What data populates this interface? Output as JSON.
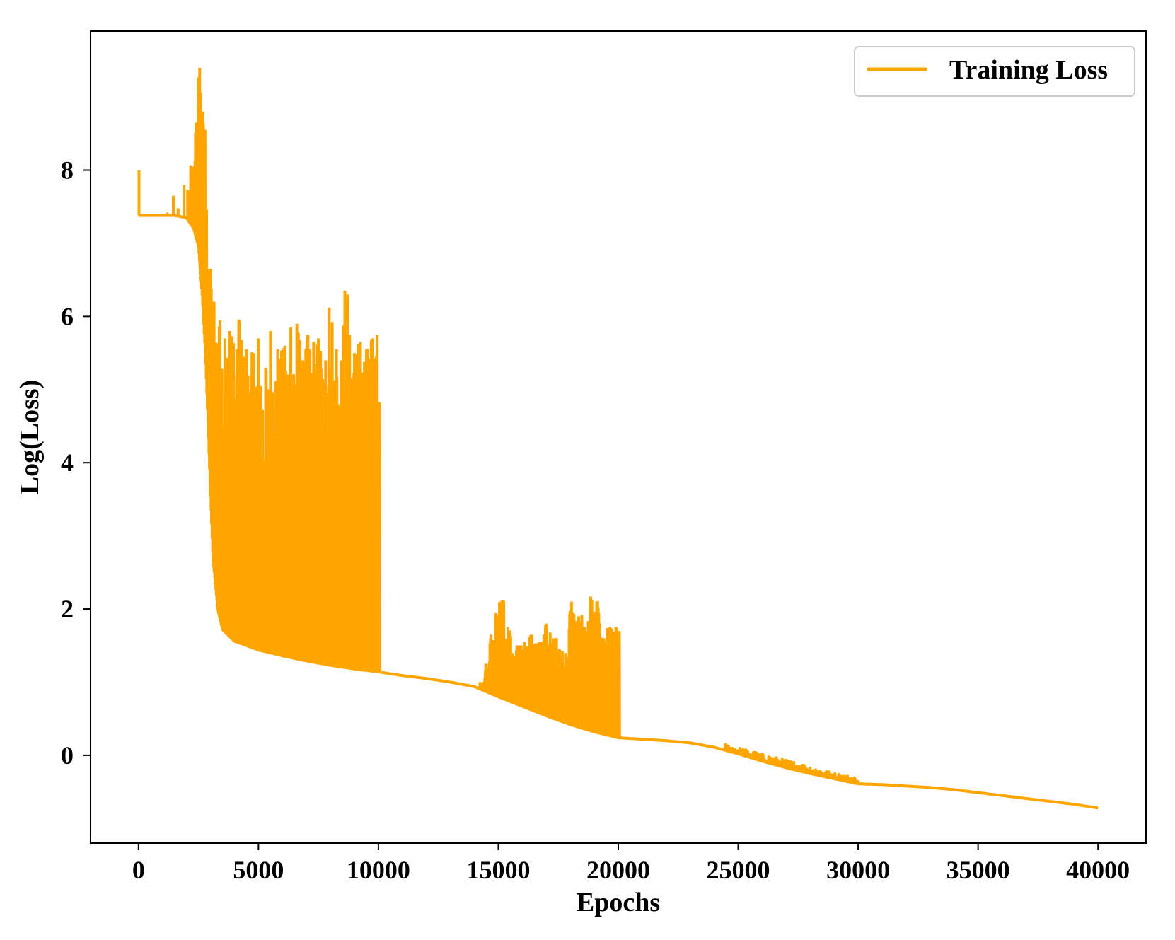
{
  "chart_data": {
    "type": "line",
    "title": "",
    "xlabel": "Epochs",
    "ylabel": "Log(Loss)",
    "xlim": [
      -2000,
      42000
    ],
    "ylim": [
      -1.2,
      9.9
    ],
    "x_ticks": [
      0,
      5000,
      10000,
      15000,
      20000,
      25000,
      30000,
      35000,
      40000
    ],
    "x_tick_labels": [
      "0",
      "5000",
      "10000",
      "15000",
      "20000",
      "25000",
      "30000",
      "35000",
      "40000"
    ],
    "y_ticks": [
      0,
      2,
      4,
      6,
      8
    ],
    "y_tick_labels": [
      "0",
      "2",
      "4",
      "6",
      "8"
    ],
    "grid": false,
    "legend": {
      "position": "top-right",
      "entries": [
        "Training Loss"
      ]
    },
    "series": [
      {
        "name": "Training Loss",
        "color": "#FFA500",
        "baseline": [
          [
            0,
            7.38
          ],
          [
            1000,
            7.38
          ],
          [
            1500,
            7.38
          ],
          [
            2000,
            7.35
          ],
          [
            2300,
            7.2
          ],
          [
            2500,
            6.95
          ],
          [
            2650,
            6.3
          ],
          [
            2800,
            5.4
          ],
          [
            2950,
            4.0
          ],
          [
            3100,
            2.7
          ],
          [
            3300,
            2.0
          ],
          [
            3500,
            1.72
          ],
          [
            4000,
            1.56
          ],
          [
            5000,
            1.44
          ],
          [
            6000,
            1.36
          ],
          [
            7000,
            1.29
          ],
          [
            8000,
            1.23
          ],
          [
            9000,
            1.18
          ],
          [
            10000,
            1.14
          ],
          [
            11000,
            1.09
          ],
          [
            12000,
            1.05
          ],
          [
            13000,
            1.0
          ],
          [
            14000,
            0.94
          ],
          [
            15000,
            0.8
          ],
          [
            16000,
            0.67
          ],
          [
            17000,
            0.54
          ],
          [
            18000,
            0.42
          ],
          [
            19000,
            0.32
          ],
          [
            20000,
            0.24
          ],
          [
            21000,
            0.22
          ],
          [
            22000,
            0.2
          ],
          [
            23000,
            0.17
          ],
          [
            24000,
            0.11
          ],
          [
            25000,
            0.02
          ],
          [
            26000,
            -0.08
          ],
          [
            27000,
            -0.17
          ],
          [
            28000,
            -0.25
          ],
          [
            29000,
            -0.32
          ],
          [
            30000,
            -0.39
          ],
          [
            31000,
            -0.4
          ],
          [
            32000,
            -0.42
          ],
          [
            33000,
            -0.44
          ],
          [
            34000,
            -0.47
          ],
          [
            35000,
            -0.51
          ],
          [
            36000,
            -0.55
          ],
          [
            37000,
            -0.59
          ],
          [
            38000,
            -0.63
          ],
          [
            39000,
            -0.67
          ],
          [
            40000,
            -0.72
          ]
        ],
        "spikes": [
          [
            20,
            8.0
          ],
          [
            1200,
            7.42
          ],
          [
            1450,
            7.65
          ],
          [
            1650,
            7.48
          ],
          [
            1900,
            7.8
          ],
          [
            2050,
            7.73
          ],
          [
            2250,
            8.05
          ],
          [
            2420,
            8.65
          ],
          [
            2550,
            9.4
          ],
          [
            2680,
            8.8
          ],
          [
            3000,
            6.65
          ],
          [
            3150,
            6.2
          ],
          [
            3400,
            5.95
          ],
          [
            3600,
            5.7
          ],
          [
            3800,
            5.8
          ],
          [
            4100,
            5.55
          ],
          [
            4200,
            5.95
          ],
          [
            4500,
            5.55
          ],
          [
            4800,
            5.5
          ],
          [
            5000,
            5.7
          ],
          [
            5300,
            5.3
          ],
          [
            5500,
            5.8
          ],
          [
            5800,
            5.55
          ],
          [
            6100,
            5.6
          ],
          [
            6350,
            5.85
          ],
          [
            6600,
            5.9
          ],
          [
            6850,
            5.4
          ],
          [
            7050,
            5.75
          ],
          [
            7300,
            5.65
          ],
          [
            7500,
            5.7
          ],
          [
            7800,
            5.4
          ],
          [
            7950,
            6.12
          ],
          [
            8250,
            5.55
          ],
          [
            8450,
            5.4
          ],
          [
            8600,
            6.35
          ],
          [
            8800,
            5.75
          ],
          [
            9000,
            5.5
          ],
          [
            9250,
            5.65
          ],
          [
            9500,
            5.55
          ],
          [
            9750,
            5.7
          ],
          [
            9950,
            5.75
          ],
          [
            14300,
            1.0
          ],
          [
            14500,
            1.25
          ],
          [
            14700,
            1.65
          ],
          [
            14900,
            1.95
          ],
          [
            15150,
            2.12
          ],
          [
            15400,
            1.75
          ],
          [
            15600,
            1.4
          ],
          [
            15850,
            1.5
          ],
          [
            16100,
            1.55
          ],
          [
            16400,
            1.65
          ],
          [
            16700,
            1.55
          ],
          [
            17000,
            1.8
          ],
          [
            17300,
            1.6
          ],
          [
            17550,
            1.45
          ],
          [
            17800,
            1.4
          ],
          [
            18050,
            2.1
          ],
          [
            18350,
            1.9
          ],
          [
            18600,
            1.75
          ],
          [
            18850,
            2.17
          ],
          [
            19100,
            2.1
          ],
          [
            19400,
            1.6
          ],
          [
            19650,
            1.75
          ],
          [
            19900,
            1.75
          ]
        ],
        "noise_band": [
          [
            24500,
            0.15
          ],
          [
            26000,
            0.02
          ],
          [
            27500,
            -0.1
          ],
          [
            29000,
            -0.24
          ],
          [
            29900,
            -0.3
          ]
        ]
      }
    ]
  }
}
